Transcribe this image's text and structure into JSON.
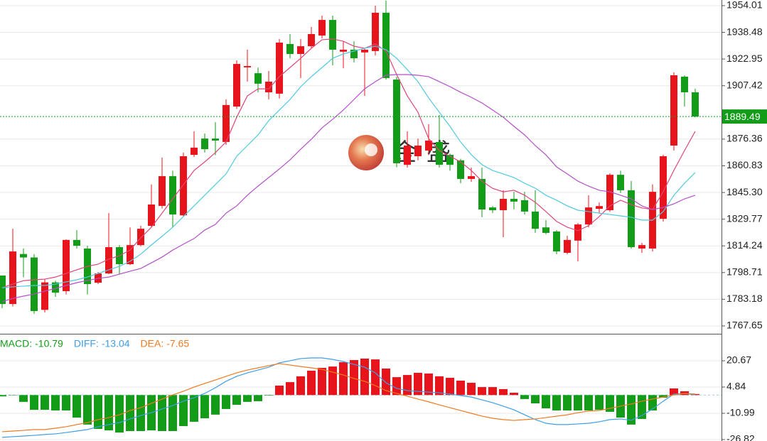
{
  "chart_data": [
    {
      "type": "candlestick",
      "watermark": "金盛",
      "open": [
        1797,
        1780.4,
        1809.5,
        1807.5,
        1777,
        1793,
        1787.9,
        1817.7,
        1812.7,
        1792.8,
        1798.2,
        1813.5,
        1803.6,
        1814.7,
        1825.9,
        1837.5,
        1854.8,
        1832,
        1867.2,
        1876.7,
        1876.7,
        1874.7,
        1895.3,
        1918.1,
        1914.7,
        1903.6,
        1902.8,
        1931.7,
        1925.9,
        1930.4,
        1936.6,
        1945.7,
        1927.2,
        1928.4,
        1926.8,
        1927.6,
        1949.9,
        1911,
        1861.4,
        1866.4,
        1869.7,
        1874.7,
        1867.2,
        1864,
        1853.2,
        1853.2,
        1836.6,
        1835,
        1841.6,
        1840.8,
        1834.2,
        1825,
        1822.6,
        1810.2,
        1817.3,
        1826.7,
        1835.8,
        1835,
        1855.6,
        1846.6,
        1812.7,
        1812.7,
        1830,
        1872.6,
        1912.7,
        1903.6
      ],
      "high": [
        1797,
        1824.2,
        1812.7,
        1809.5,
        1795,
        1794,
        1818,
        1823.4,
        1814.3,
        1799,
        1833.3,
        1814.7,
        1825,
        1825.9,
        1850,
        1865.6,
        1858,
        1868.5,
        1880.9,
        1879.6,
        1886.2,
        1899.5,
        1922.2,
        1928.4,
        1918,
        1916,
        1934.6,
        1937.5,
        1934.6,
        1941.6,
        1948.2,
        1948.2,
        1933.3,
        1933.3,
        1929,
        1954,
        1957,
        1912.7,
        1880.9,
        1876.7,
        1885,
        1890.4,
        1868,
        1864.9,
        1859.8,
        1859.8,
        1837.4,
        1846.6,
        1845.7,
        1845.7,
        1846.6,
        1829.2,
        1823.4,
        1820.1,
        1827.5,
        1843.7,
        1839.5,
        1856.5,
        1858,
        1852,
        1816,
        1850,
        1867.2,
        1915.2,
        1913.5,
        1905.7
      ],
      "low": [
        1778,
        1779,
        1796,
        1774.7,
        1775.5,
        1784.6,
        1786,
        1812.7,
        1786,
        1792,
        1797.8,
        1797.8,
        1803,
        1814,
        1825,
        1836,
        1825,
        1831,
        1866,
        1868.5,
        1867,
        1873,
        1894,
        1909.8,
        1903.6,
        1899.5,
        1900,
        1923.4,
        1911.9,
        1929,
        1935,
        1919.3,
        1917.6,
        1921,
        1901.5,
        1925,
        1911,
        1860,
        1859.8,
        1864,
        1867,
        1859.8,
        1858,
        1850.7,
        1851.5,
        1830.9,
        1833.3,
        1819.3,
        1835.5,
        1832.5,
        1821.8,
        1821,
        1809.4,
        1809.4,
        1805.2,
        1825,
        1833.3,
        1834,
        1845,
        1812.7,
        1810.2,
        1811,
        1828.4,
        1869.7,
        1895.3,
        1889
      ],
      "close": [
        1780.4,
        1811,
        1807.5,
        1776.3,
        1793,
        1787,
        1817.7,
        1814.3,
        1792,
        1798.2,
        1813.5,
        1803.6,
        1814.7,
        1824.2,
        1838.3,
        1854.8,
        1832.5,
        1866.4,
        1871.4,
        1870.5,
        1875.5,
        1896.2,
        1920.1,
        1918.9,
        1908.6,
        1909.8,
        1932.5,
        1925.9,
        1930.4,
        1937.5,
        1945.7,
        1928.4,
        1928.4,
        1923.4,
        1928.4,
        1949.9,
        1911.9,
        1862.3,
        1872.6,
        1872.6,
        1875.5,
        1861.4,
        1861.4,
        1853.2,
        1854.8,
        1835.4,
        1835,
        1841.6,
        1840,
        1834.2,
        1824.2,
        1821.8,
        1811,
        1817.7,
        1826.7,
        1836.6,
        1837.4,
        1855.6,
        1846.6,
        1813.5,
        1814.7,
        1845.7,
        1866.4,
        1913.5,
        1903.6,
        1889.49
      ],
      "up_color": "#e8141b",
      "down_color": "#129c17",
      "lines": [
        {
          "color": "#e0457a",
          "values": [
            1789.9,
            1792,
            1794,
            1794.5,
            1794.9,
            1796.1,
            1798.2,
            1800.3,
            1802.3,
            1803.6,
            1806.5,
            1808.5,
            1811.8,
            1818.9,
            1825.1,
            1833.3,
            1841.6,
            1849.9,
            1858.1,
            1863.1,
            1868.5,
            1874.7,
            1889.1,
            1901.5,
            1905.6,
            1905.6,
            1912.7,
            1918,
            1923.4,
            1929.2,
            1934.2,
            1934.6,
            1933.3,
            1930.4,
            1929.2,
            1931.7,
            1927.6,
            1913.9,
            1901.5,
            1892,
            1876.7,
            1869.7,
            1866.4,
            1863.1,
            1858.1,
            1851.9,
            1847.7,
            1845.7,
            1846.6,
            1843.7,
            1839.6,
            1834.2,
            1828.5,
            1825.1,
            1823.1,
            1826,
            1831.3,
            1837.5,
            1840.8,
            1838.3,
            1836.3,
            1835.4,
            1845.8,
            1858.2,
            1869.7,
            1880.9
          ]
        },
        {
          "color": "#4fc9e0",
          "values": [
            1789.9,
            1790.4,
            1790.8,
            1791.2,
            1791.2,
            1792,
            1793.3,
            1794.5,
            1796.1,
            1798.2,
            1800.3,
            1802.3,
            1805.3,
            1809.4,
            1814.8,
            1819.8,
            1825.1,
            1831.3,
            1837.5,
            1843.7,
            1849.9,
            1856.1,
            1866.4,
            1872.6,
            1878.8,
            1887.1,
            1893.3,
            1899.4,
            1906.9,
            1912.7,
            1918,
            1923.4,
            1925.9,
            1927.6,
            1929.2,
            1930.4,
            1928.4,
            1923.4,
            1916.8,
            1909.8,
            1900.3,
            1892,
            1883.8,
            1874.7,
            1867.3,
            1861.5,
            1858.1,
            1856.1,
            1854,
            1850.7,
            1847.8,
            1843.7,
            1840.8,
            1837.5,
            1835,
            1834.2,
            1833.3,
            1832.5,
            1831.7,
            1830.9,
            1829.2,
            1829.2,
            1834.2,
            1843.7,
            1850.7,
            1856.9
          ]
        },
        {
          "color": "#b44fc9",
          "values": [
            1781.7,
            1783.7,
            1785,
            1786.2,
            1787.9,
            1789.5,
            1791.2,
            1792.8,
            1794.1,
            1795.3,
            1796.1,
            1797.8,
            1799.5,
            1801.1,
            1804.4,
            1807.7,
            1811.8,
            1815.2,
            1818.5,
            1823.4,
            1826.7,
            1833.3,
            1837.5,
            1843.7,
            1849,
            1854,
            1859,
            1864.3,
            1870.5,
            1876.3,
            1882.9,
            1887.9,
            1893.3,
            1899.4,
            1905.6,
            1909.8,
            1913.5,
            1913.9,
            1913.9,
            1913.5,
            1912.7,
            1909.8,
            1906.9,
            1903.6,
            1900.7,
            1897.4,
            1893.3,
            1889.1,
            1883.8,
            1878.8,
            1872.6,
            1867.2,
            1860.2,
            1856.1,
            1851.9,
            1849,
            1846.6,
            1845.7,
            1843.7,
            1841.6,
            1837.5,
            1835.4,
            1836.6,
            1838.7,
            1841.6,
            1843.7
          ]
        }
      ],
      "last_price": 1889.49,
      "last_price_color": "#129c17",
      "ylim": [
        1763.1,
        1957.3
      ],
      "yticks": [
        1954.01,
        1938.48,
        1922.95,
        1907.42,
        1876.36,
        1860.83,
        {
          "value": 1845.3,
          "label": "1845.30"
        },
        1829.77,
        1814.24,
        1798.71,
        1783.18,
        1767.65
      ],
      "grid": true
    },
    {
      "type": "macd",
      "labels": [
        {
          "label": "MACD:",
          "value": -10.79,
          "color": "#129c17"
        },
        {
          "label": "DIFF:",
          "value": -13.04,
          "color": "#3d9ee8"
        },
        {
          "label": "DEA:",
          "value": -7.65,
          "color": "#f07a20"
        }
      ],
      "histogram": [
        -0.8,
        -0.2,
        -4.1,
        -8.9,
        -8.9,
        -9.3,
        -9.3,
        -13.6,
        -17.8,
        -20.4,
        -21.3,
        -22.6,
        -21.7,
        -21.7,
        -21.3,
        -21.7,
        -21.7,
        -18.7,
        -16.1,
        -14,
        -11.8,
        -8.4,
        -5.9,
        -4.1,
        -3.7,
        -0.3,
        5.7,
        7.8,
        11.3,
        14.7,
        16.4,
        17.2,
        19.8,
        21.1,
        22,
        21.5,
        16,
        10.8,
        12.1,
        13.4,
        13,
        11.3,
        10.4,
        8.7,
        7.4,
        4.8,
        4.8,
        3.6,
        1.4,
        -2.4,
        -5,
        -8,
        -9.3,
        -9.3,
        -9.3,
        -9.3,
        -8.9,
        -10.1,
        -13.6,
        -17.8,
        -14.4,
        -9.3,
        -1.6,
        4,
        2.3,
        0.6
      ],
      "up_color": "#e8141b",
      "down_color": "#129c17",
      "lines": [
        {
          "color": "#3d9ee8",
          "values": [
            -25.5,
            -25.1,
            -24.7,
            -24.3,
            -23.8,
            -23.4,
            -22.6,
            -21.7,
            -20.8,
            -19.1,
            -17.8,
            -16.6,
            -14.4,
            -12.3,
            -10.6,
            -8.4,
            -6.3,
            -3.7,
            -1.6,
            1,
            4.4,
            8.3,
            11.3,
            13.4,
            15.1,
            16.8,
            19.4,
            20.7,
            22,
            22.4,
            22.4,
            21.5,
            20.2,
            18.5,
            16.8,
            13.4,
            7.4,
            4,
            2.7,
            2.2,
            1.8,
            1.4,
            0.6,
            -0.3,
            -1.2,
            -2.9,
            -4.6,
            -6.7,
            -8.9,
            -11.9,
            -14.8,
            -17,
            -17.8,
            -17.8,
            -17.4,
            -17,
            -16.1,
            -14.8,
            -14.4,
            -15.2,
            -12.3,
            -8.4,
            -3.7,
            0.6,
            1,
            0.1
          ]
        },
        {
          "color": "#f07a20",
          "values": [
            -22.1,
            -21.7,
            -21.3,
            -20.8,
            -20.8,
            -20,
            -19.1,
            -17.8,
            -16.6,
            -14.8,
            -13.6,
            -11.9,
            -9.3,
            -7.6,
            -5,
            -2.4,
            0.1,
            2.3,
            4.8,
            7,
            9.1,
            11.3,
            13.4,
            15.1,
            16.4,
            17.7,
            19,
            18.1,
            17.2,
            16.4,
            15.5,
            13.8,
            12.1,
            10,
            8.3,
            5.7,
            2.7,
            1,
            -0.7,
            -2.4,
            -4.1,
            -5.9,
            -7.6,
            -9.3,
            -11,
            -12.7,
            -14,
            -14.8,
            -15.3,
            -14.8,
            -14.4,
            -13.6,
            -12.7,
            -11.9,
            -10.6,
            -9.7,
            -9.3,
            -8,
            -6.7,
            -5.4,
            -3.7,
            -2.4,
            -1.2,
            0.1,
            1,
            0.6
          ]
        }
      ],
      "ylim": [
        -27.7,
        36.1
      ],
      "yticks": [
        20.67,
        4.84,
        -10.99,
        -26.82
      ]
    }
  ]
}
